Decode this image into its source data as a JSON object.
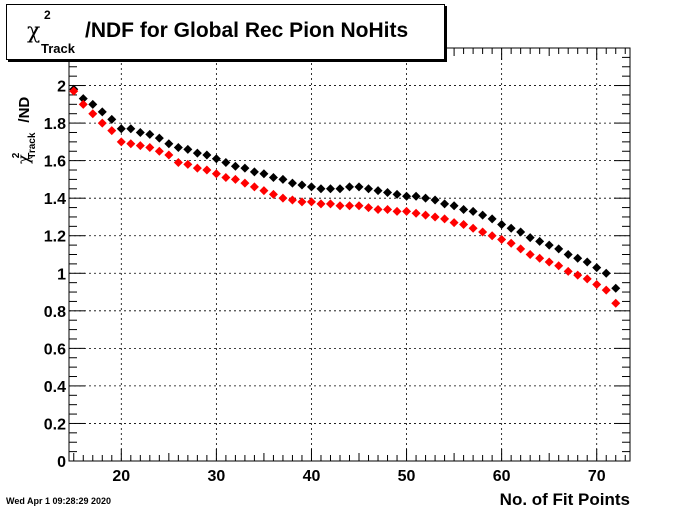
{
  "title": {
    "symbol": "χ",
    "superscript": "2",
    "subscript": "Track",
    "text": "/NDF for Global Rec Pion NoHits"
  },
  "ylabel": {
    "symbol": "χ",
    "superscript": "2",
    "subscript": "Track",
    "text": "/ND"
  },
  "xlabel": "No. of Fit Points",
  "timestamp": "Wed Apr  1 09:28:29 2020",
  "colors": {
    "series1": "#000000",
    "series2": "#ff0000",
    "axis": "#000000",
    "grid": "#000000"
  },
  "chart_data": {
    "type": "scatter",
    "title": "χ²_Track/NDF for Global Rec Pion NoHits",
    "xlabel": "No. of Fit Points",
    "ylabel": "χ²_Track/ND",
    "xlim": [
      14.5,
      73.5
    ],
    "ylim": [
      0,
      2.2
    ],
    "x_ticks": [
      20,
      30,
      40,
      50,
      60,
      70
    ],
    "y_ticks": [
      0,
      0.2,
      0.4,
      0.6,
      0.8,
      1,
      1.2,
      1.4,
      1.6,
      1.8,
      2
    ],
    "y_tick_labels": [
      "0",
      "0.2",
      "0.4",
      "0.6",
      "0.8",
      "1",
      "1.2",
      "1.4",
      "1.6",
      "1.8",
      "2"
    ],
    "grid": true,
    "x": [
      15,
      16,
      17,
      18,
      19,
      20,
      21,
      22,
      23,
      24,
      25,
      26,
      27,
      28,
      29,
      30,
      31,
      32,
      33,
      34,
      35,
      36,
      37,
      38,
      39,
      40,
      41,
      42,
      43,
      44,
      45,
      46,
      47,
      48,
      49,
      50,
      51,
      52,
      53,
      54,
      55,
      56,
      57,
      58,
      59,
      60,
      61,
      62,
      63,
      64,
      65,
      66,
      67,
      68,
      69,
      70,
      71,
      72
    ],
    "series": [
      {
        "color": "#000000",
        "values": [
          1.98,
          1.93,
          1.9,
          1.86,
          1.82,
          1.77,
          1.77,
          1.75,
          1.74,
          1.72,
          1.69,
          1.67,
          1.66,
          1.64,
          1.63,
          1.61,
          1.59,
          1.57,
          1.56,
          1.54,
          1.53,
          1.51,
          1.5,
          1.48,
          1.47,
          1.46,
          1.45,
          1.45,
          1.45,
          1.46,
          1.46,
          1.45,
          1.44,
          1.43,
          1.42,
          1.41,
          1.41,
          1.4,
          1.39,
          1.37,
          1.36,
          1.34,
          1.33,
          1.31,
          1.29,
          1.26,
          1.24,
          1.22,
          1.19,
          1.17,
          1.15,
          1.13,
          1.1,
          1.08,
          1.06,
          1.03,
          1.0,
          0.92
        ]
      },
      {
        "color": "#ff0000",
        "values": [
          1.97,
          1.9,
          1.85,
          1.8,
          1.76,
          1.7,
          1.69,
          1.68,
          1.67,
          1.65,
          1.63,
          1.59,
          1.58,
          1.56,
          1.55,
          1.53,
          1.51,
          1.5,
          1.48,
          1.46,
          1.44,
          1.42,
          1.4,
          1.39,
          1.38,
          1.38,
          1.37,
          1.37,
          1.36,
          1.36,
          1.36,
          1.35,
          1.34,
          1.34,
          1.33,
          1.33,
          1.32,
          1.31,
          1.3,
          1.29,
          1.27,
          1.26,
          1.24,
          1.22,
          1.2,
          1.18,
          1.16,
          1.13,
          1.1,
          1.08,
          1.06,
          1.04,
          1.01,
          0.99,
          0.97,
          0.94,
          0.91,
          0.84
        ]
      }
    ]
  }
}
